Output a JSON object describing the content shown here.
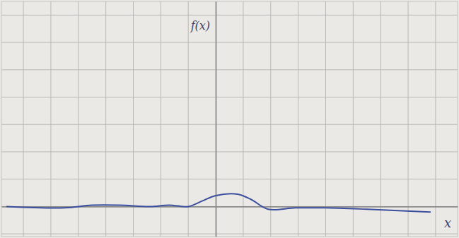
{
  "chart_data": {
    "type": "line",
    "x_label": "x",
    "y_label": "f(x)",
    "x": [
      -7.6,
      -5.5,
      -4.5,
      -3.5,
      -2.4,
      -1.7,
      -1.0,
      -0.5,
      0,
      0.8,
      1.3,
      1.9,
      2.9,
      4.0,
      5.5,
      7.8
    ],
    "values": [
      0,
      -0.05,
      0.05,
      0.05,
      0,
      0.05,
      0,
      0.2,
      0.4,
      0.45,
      0.25,
      -0.1,
      -0.05,
      -0.05,
      -0.1,
      -0.2
    ],
    "color": "#3b4f9e",
    "xlim": [
      -7.8,
      8.8
    ],
    "ylim": [
      -1.1,
      7.5
    ],
    "xticks": [
      -7,
      -6,
      -5,
      -4,
      -3,
      -2,
      -1,
      0,
      1,
      2,
      3,
      4,
      5,
      6,
      7,
      8
    ],
    "yticks": [
      -1,
      0,
      1,
      2,
      3,
      4,
      5,
      6,
      7
    ],
    "grid": true,
    "tick_labels": false
  }
}
